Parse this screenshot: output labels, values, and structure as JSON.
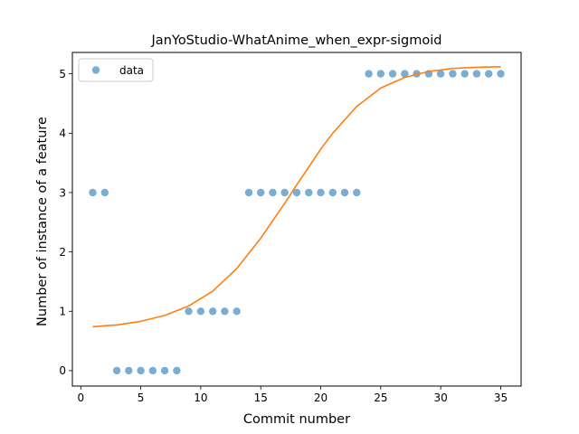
{
  "chart_data": {
    "type": "scatter",
    "title": "JanYoStudio-WhatAnime_when_expr-sigmoid",
    "xlabel": "Commit number",
    "ylabel": "Number of instance of a feature",
    "xlim": [
      -0.7,
      36.7
    ],
    "ylim": [
      -0.26,
      5.36
    ],
    "xticks": [
      0,
      5,
      10,
      15,
      20,
      25,
      30,
      35
    ],
    "yticks": [
      0,
      1,
      2,
      3,
      4,
      5
    ],
    "grid": false,
    "legend": {
      "placement": "top-left",
      "entries": [
        "data"
      ]
    },
    "series": [
      {
        "name": "data",
        "kind": "markers",
        "color": "#1f77b4",
        "x": [
          1,
          2,
          3,
          4,
          5,
          6,
          7,
          8,
          9,
          10,
          11,
          12,
          13,
          14,
          15,
          16,
          17,
          18,
          19,
          20,
          21,
          22,
          23,
          24,
          25,
          26,
          27,
          28,
          29,
          30,
          31,
          32,
          33,
          34,
          35
        ],
        "y": [
          3,
          3,
          0,
          0,
          0,
          0,
          0,
          0,
          1,
          1,
          1,
          1,
          1,
          3,
          3,
          3,
          3,
          3,
          3,
          3,
          3,
          3,
          3,
          5,
          5,
          5,
          5,
          5,
          5,
          5,
          5,
          5,
          5,
          5,
          5
        ]
      },
      {
        "kind": "fitted-line",
        "color": "#ff7f0e",
        "x": [
          1,
          3,
          5,
          7,
          9,
          11,
          13,
          15,
          17,
          18,
          19,
          20,
          21,
          23,
          25,
          27,
          29,
          31,
          33,
          35
        ],
        "y": [
          0.74,
          0.77,
          0.83,
          0.93,
          1.09,
          1.34,
          1.72,
          2.23,
          2.82,
          3.13,
          3.43,
          3.73,
          4.0,
          4.45,
          4.76,
          4.94,
          5.04,
          5.09,
          5.11,
          5.12
        ]
      }
    ]
  }
}
